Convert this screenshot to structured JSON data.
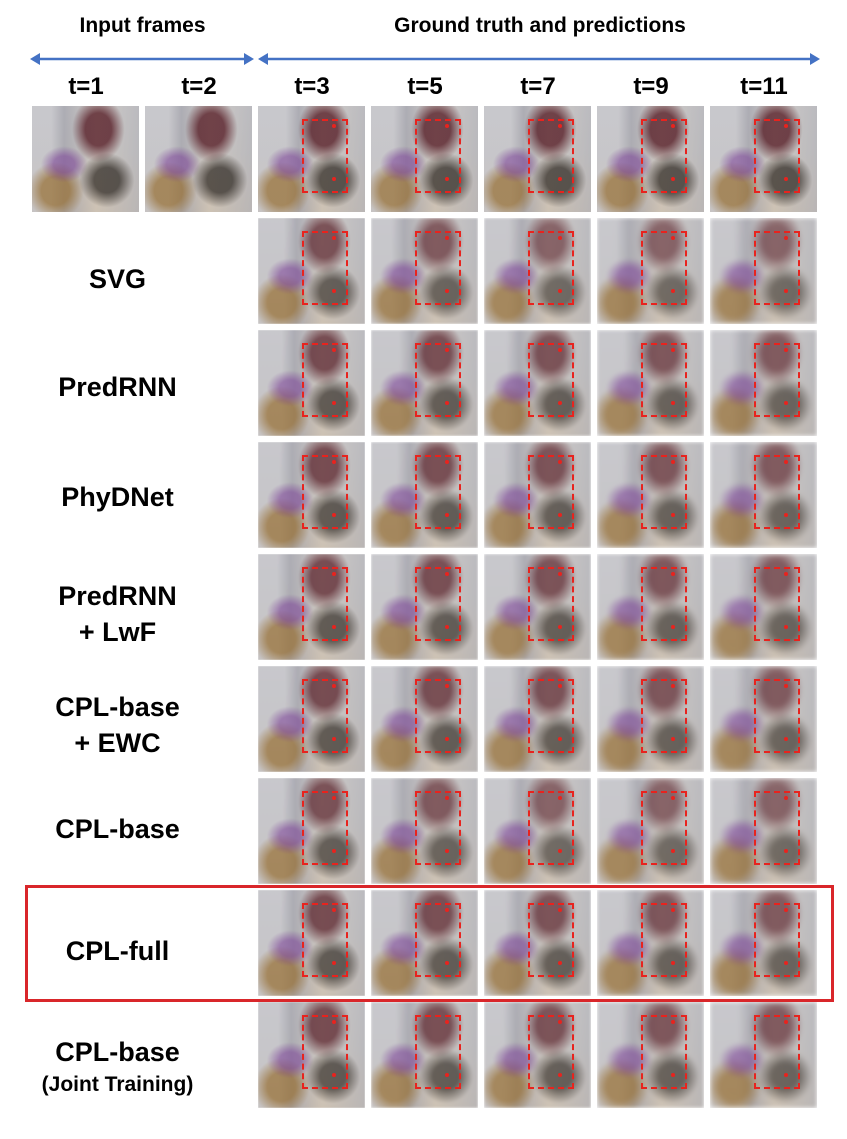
{
  "headers": {
    "input_frames": "Input frames",
    "ground_truth": "Ground truth and predictions"
  },
  "time_labels": [
    "t=1",
    "t=2",
    "t=3",
    "t=5",
    "t=7",
    "t=9",
    "t=11"
  ],
  "rows": [
    {
      "id": "gt",
      "label1": "",
      "label2": ""
    },
    {
      "id": "svg",
      "label1": "SVG",
      "label2": ""
    },
    {
      "id": "predrnn",
      "label1": "PredRNN",
      "label2": ""
    },
    {
      "id": "phydnet",
      "label1": "PhyDNet",
      "label2": ""
    },
    {
      "id": "predrnn-lwf",
      "label1": "PredRNN",
      "label2": "+ LwF"
    },
    {
      "id": "cpl-base-ewc",
      "label1": "CPL-base",
      "label2": "+ EWC"
    },
    {
      "id": "cpl-base",
      "label1": "CPL-base",
      "label2": ""
    },
    {
      "id": "cpl-full",
      "label1": "CPL-full",
      "label2": ""
    },
    {
      "id": "cpl-base-joint",
      "label1": "CPL-base",
      "label2": "(Joint Training)"
    }
  ],
  "colors": {
    "accent_red": "#e8231e",
    "highlight_border": "#d9262a",
    "arrow_blue": "#4472c4"
  }
}
